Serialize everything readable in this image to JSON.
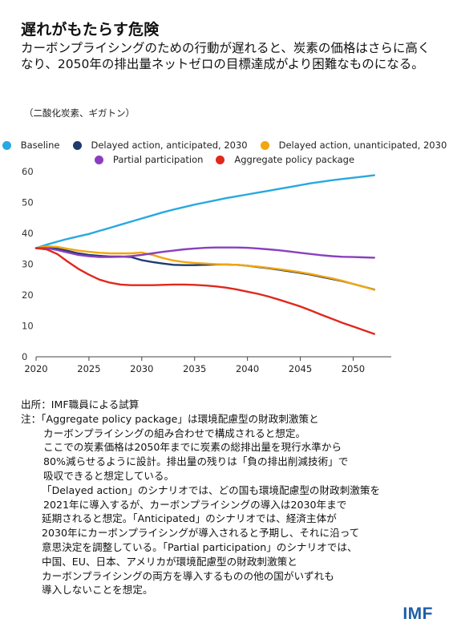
{
  "header": {
    "title": "遅れがもたらす危険",
    "subtitle": "カーボンプライシングのための行動が遅れると、炭素の価格はさらに高くなり、2050年の排出量ネットゼロの目標達成がより困難なものになる。",
    "units": "（二酸化炭素、ギガトン）"
  },
  "legend": [
    {
      "label": "Baseline",
      "color": "#29a8e0"
    },
    {
      "label": "Delayed action, anticipated, 2030",
      "color": "#1f3b6e"
    },
    {
      "label": "Delayed action, unanticipated, 2030",
      "color": "#f2a60f"
    },
    {
      "label": "Partial participation",
      "color": "#8a3fbf"
    },
    {
      "label": "Aggregate policy package",
      "color": "#e0281d"
    }
  ],
  "chart_data": {
    "type": "line",
    "ylim": [
      0,
      60
    ],
    "yticks": [
      0,
      10,
      20,
      30,
      40,
      50,
      60
    ],
    "xlim": [
      2020,
      2053
    ],
    "xticks": [
      2020,
      2025,
      2030,
      2035,
      2040,
      2045,
      2050
    ],
    "x": [
      2020,
      2021,
      2022,
      2023,
      2024,
      2025,
      2026,
      2027,
      2028,
      2029,
      2030,
      2031,
      2032,
      2033,
      2034,
      2035,
      2036,
      2037,
      2038,
      2039,
      2040,
      2041,
      2042,
      2043,
      2044,
      2045,
      2046,
      2047,
      2048,
      2049,
      2050,
      2051,
      2052
    ],
    "series": [
      {
        "name": "Baseline",
        "color": "#29a8e0",
        "values": [
          35.2,
          36.3,
          37.3,
          38.2,
          39.0,
          39.8,
          40.8,
          41.8,
          42.8,
          43.8,
          44.8,
          45.8,
          46.8,
          47.7,
          48.5,
          49.3,
          50.0,
          50.7,
          51.4,
          52.0,
          52.6,
          53.2,
          53.8,
          54.4,
          55.0,
          55.6,
          56.2,
          56.7,
          57.2,
          57.6,
          58.0,
          58.4,
          58.8
        ]
      },
      {
        "name": "Delayed action, anticipated, 2030",
        "color": "#1f3b6e",
        "values": [
          35.2,
          35.4,
          35.0,
          34.3,
          33.5,
          33.0,
          32.7,
          32.5,
          32.5,
          32.3,
          31.3,
          30.7,
          30.2,
          29.8,
          29.7,
          29.7,
          29.8,
          29.9,
          29.9,
          29.8,
          29.5,
          29.1,
          28.7,
          28.2,
          27.7,
          27.2,
          26.6,
          25.9,
          25.2,
          24.5,
          23.6,
          22.7,
          21.8
        ]
      },
      {
        "name": "Delayed action, unanticipated, 2030",
        "color": "#f2a60f",
        "values": [
          35.2,
          35.8,
          35.6,
          35.0,
          34.4,
          34.0,
          33.7,
          33.5,
          33.5,
          33.5,
          33.8,
          33.0,
          32.0,
          31.2,
          30.7,
          30.4,
          30.2,
          30.0,
          29.9,
          29.8,
          29.5,
          29.2,
          28.8,
          28.4,
          27.9,
          27.4,
          26.8,
          26.1,
          25.4,
          24.6,
          23.6,
          22.7,
          21.7
        ]
      },
      {
        "name": "Partial participation",
        "color": "#8a3fbf",
        "values": [
          35.2,
          35.2,
          34.6,
          33.8,
          33.0,
          32.6,
          32.3,
          32.3,
          32.4,
          32.6,
          33.0,
          33.5,
          34.0,
          34.4,
          34.8,
          35.1,
          35.3,
          35.4,
          35.4,
          35.4,
          35.3,
          35.1,
          34.8,
          34.5,
          34.1,
          33.7,
          33.3,
          32.9,
          32.6,
          32.4,
          32.3,
          32.2,
          32.1
        ]
      },
      {
        "name": "Aggregate policy package",
        "color": "#e0281d",
        "values": [
          35.2,
          34.8,
          33.3,
          30.8,
          28.5,
          26.6,
          25.0,
          24.0,
          23.4,
          23.2,
          23.2,
          23.2,
          23.3,
          23.4,
          23.4,
          23.3,
          23.1,
          22.8,
          22.4,
          21.8,
          21.1,
          20.4,
          19.5,
          18.5,
          17.4,
          16.3,
          15.0,
          13.6,
          12.3,
          11.0,
          9.8,
          8.6,
          7.4
        ]
      }
    ]
  },
  "notes": {
    "source": "出所：IMF職員による試算",
    "lines": [
      "注：「Aggregate policy package」は環境配慮型の財政刺激策と",
      "カーボンプライシングの組み合わせで構成されると想定。",
      "ここでの炭素価格は2050年までに炭素の総排出量を現行水準から",
      "80%減らせるように設計。排出量の残りは「負の排出削減技術」で",
      "吸収できると想定している。",
      "「Delayed action」のシナリオでは、どの国も環境配慮型の財政刺激策を",
      "2021年に導入するが、カーボンプライシングの導入は2030年まで",
      "延期されると想定。「Anticipated」のシナリオでは、経済主体が",
      "2030年にカーボンプライシングが導入されると予期し、それに沿って",
      "意思決定を調整している。「Partial participation」のシナリオでは、",
      "中国、EU、日本、アメリカが環境配慮型の財政刺激策と",
      "カーボンプライシングの両方を導入するものの他の国がいずれも",
      "導入しないことを想定。"
    ]
  },
  "brand": {
    "logo_text": "IMF"
  }
}
